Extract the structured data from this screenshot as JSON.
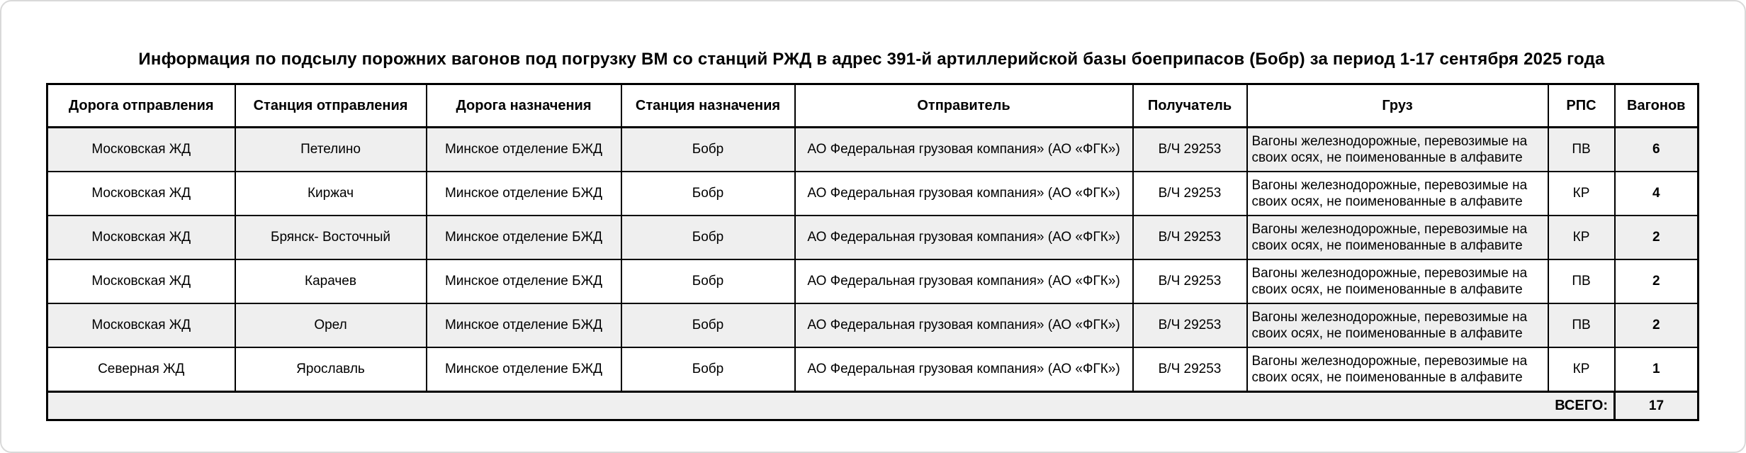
{
  "title": "Информация по подсылу порожних вагонов под погрузку ВМ со станций РЖД в адрес 391-й артиллерийской базы боеприпасов (Бобр) за период 1-17 сентября 2025 года",
  "table": {
    "columns": [
      {
        "key": "departure-road",
        "label": "Дорога отправления"
      },
      {
        "key": "departure-station",
        "label": "Станция отправления"
      },
      {
        "key": "destination-road",
        "label": "Дорога назначения"
      },
      {
        "key": "destination-station",
        "label": "Станция назначения"
      },
      {
        "key": "sender",
        "label": "Отправитель"
      },
      {
        "key": "receiver",
        "label": "Получатель"
      },
      {
        "key": "cargo",
        "label": "Груз"
      },
      {
        "key": "rps",
        "label": "РПС"
      },
      {
        "key": "wagons",
        "label": "Вагонов"
      }
    ],
    "rows": [
      [
        "Московская ЖД",
        "Петелино",
        "Минское отделение БЖД",
        "Бобр",
        "АО Федеральная грузовая компания» (АО «ФГК»)",
        "В/Ч 29253",
        "Вагоны железнодорожные, перевозимые на своих осях, не поименованные в алфавите",
        "ПВ",
        "6"
      ],
      [
        "Московская ЖД",
        "Киржач",
        "Минское отделение БЖД",
        "Бобр",
        "АО Федеральная грузовая компания» (АО «ФГК»)",
        "В/Ч 29253",
        "Вагоны железнодорожные, перевозимые на своих осях, не поименованные в алфавите",
        "КР",
        "4"
      ],
      [
        "Московская ЖД",
        "Брянск- Восточный",
        "Минское отделение БЖД",
        "Бобр",
        "АО Федеральная грузовая компания» (АО «ФГК»)",
        "В/Ч 29253",
        "Вагоны железнодорожные, перевозимые на своих осях, не поименованные в алфавите",
        "КР",
        "2"
      ],
      [
        "Московская ЖД",
        "Карачев",
        "Минское отделение БЖД",
        "Бобр",
        "АО Федеральная грузовая компания» (АО «ФГК»)",
        "В/Ч 29253",
        "Вагоны железнодорожные, перевозимые на своих осях, не поименованные в алфавите",
        "ПВ",
        "2"
      ],
      [
        "Московская ЖД",
        "Орел",
        "Минское отделение БЖД",
        "Бобр",
        "АО Федеральная грузовая компания» (АО «ФГК»)",
        "В/Ч 29253",
        "Вагоны железнодорожные, перевозимые на своих осях, не поименованные в алфавите",
        "ПВ",
        "2"
      ],
      [
        "Северная ЖД",
        "Ярославль",
        "Минское отделение БЖД",
        "Бобр",
        "АО Федеральная грузовая компания» (АО «ФГК»)",
        "В/Ч 29253",
        "Вагоны железнодорожные, перевозимые на своих осях, не поименованные в алфавите",
        "КР",
        "1"
      ]
    ],
    "total_label": "ВСЕГО:",
    "total_value": "17"
  },
  "colors": {
    "border": "#000000",
    "row_alt_background": "#efefef",
    "page_background": "#ffffff",
    "text": "#000000"
  }
}
